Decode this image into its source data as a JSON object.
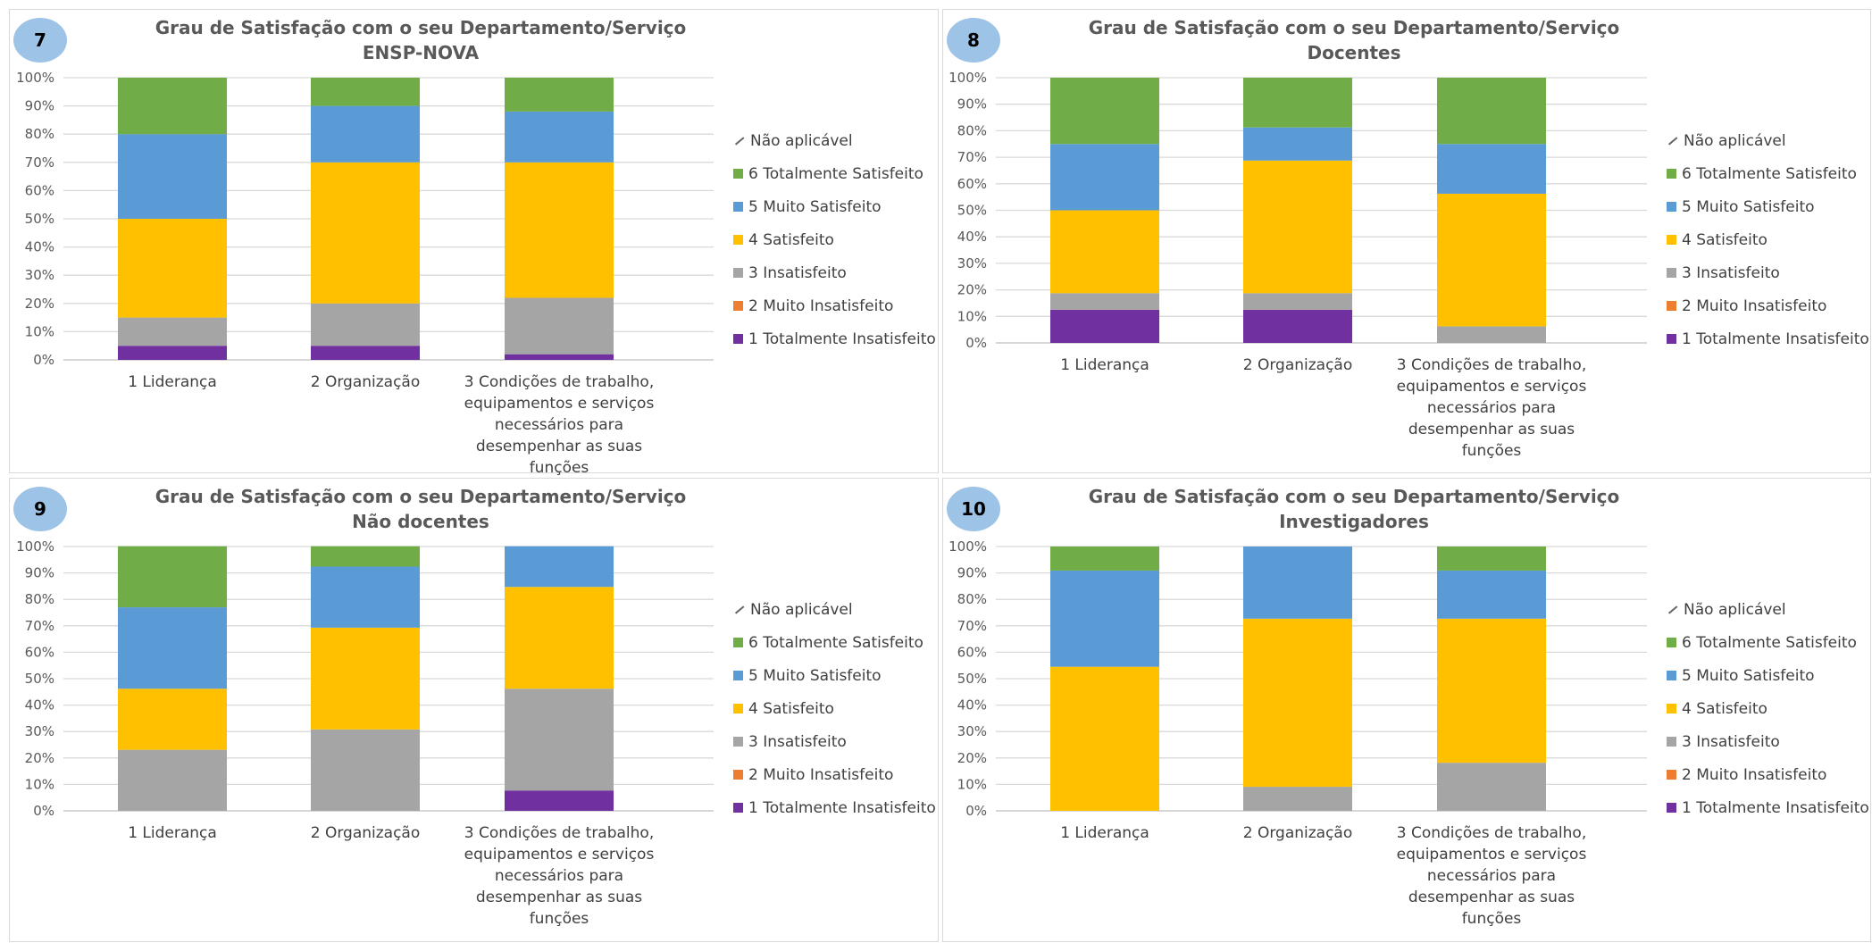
{
  "legend": [
    "Não aplicável",
    "6 Totalmente Satisfeito",
    "5 Muito Satisfeito",
    "4 Satisfeito",
    "3 Insatisfeito",
    "2 Muito Insatisfeito",
    "1 Totalmente Insatisfeito"
  ],
  "colors": {
    "1 Totalmente Insatisfeito": "#7030a0",
    "2 Muito Insatisfeito": "#ed7d31",
    "3 Insatisfeito": "#a5a5a5",
    "4 Satisfeito": "#ffc000",
    "5 Muito Satisfeito": "#5b9bd5",
    "6 Totalmente Satisfeito": "#70ad47",
    "Não aplicável": "#ffffff"
  },
  "chart_data": [
    {
      "type": "bar",
      "badge": "7",
      "title": "Grau de Satisfação com o seu Departamento/Serviço",
      "subtitle": "ENSP-NOVA",
      "categories": [
        "1 Liderança",
        "2 Organização",
        "3 Condições de trabalho, equipamentos e serviços necessários para desempenhar as suas funções"
      ],
      "yticks": [
        "0%",
        "10%",
        "20%",
        "30%",
        "40%",
        "50%",
        "60%",
        "70%",
        "80%",
        "90%",
        "100%"
      ],
      "ylim": [
        0,
        100
      ],
      "series": [
        {
          "name": "1 Totalmente Insatisfeito",
          "values": [
            5,
            5,
            2
          ]
        },
        {
          "name": "2 Muito Insatisfeito",
          "values": [
            0,
            0,
            0
          ]
        },
        {
          "name": "3 Insatisfeito",
          "values": [
            10,
            15,
            20
          ]
        },
        {
          "name": "4 Satisfeito",
          "values": [
            35,
            50,
            48
          ]
        },
        {
          "name": "5 Muito Satisfeito",
          "values": [
            30,
            20,
            18
          ]
        },
        {
          "name": "6 Totalmente Satisfeito",
          "values": [
            20,
            10,
            12
          ]
        },
        {
          "name": "Não aplicável",
          "values": [
            0,
            0,
            0
          ]
        }
      ]
    },
    {
      "type": "bar",
      "badge": "8",
      "title": "Grau de Satisfação com o seu Departamento/Serviço",
      "subtitle": "Docentes",
      "categories": [
        "1 Liderança",
        "2 Organização",
        "3 Condições de trabalho, equipamentos e serviços necessários para desempenhar as suas funções"
      ],
      "yticks": [
        "0%",
        "10%",
        "20%",
        "30%",
        "40%",
        "50%",
        "60%",
        "70%",
        "80%",
        "90%",
        "100%"
      ],
      "ylim": [
        0,
        100
      ],
      "series": [
        {
          "name": "1 Totalmente Insatisfeito",
          "values": [
            12.5,
            12.5,
            0
          ]
        },
        {
          "name": "2 Muito Insatisfeito",
          "values": [
            0,
            0,
            0
          ]
        },
        {
          "name": "3 Insatisfeito",
          "values": [
            6.25,
            6.25,
            6.25
          ]
        },
        {
          "name": "4 Satisfeito",
          "values": [
            31.25,
            50,
            50
          ]
        },
        {
          "name": "5 Muito Satisfeito",
          "values": [
            25,
            12.5,
            18.75
          ]
        },
        {
          "name": "6 Totalmente Satisfeito",
          "values": [
            25,
            18.75,
            25
          ]
        },
        {
          "name": "Não aplicável",
          "values": [
            0,
            0,
            0
          ]
        }
      ]
    },
    {
      "type": "bar",
      "badge": "9",
      "title": "Grau de Satisfação com o seu Departamento/Serviço",
      "subtitle": "Não docentes",
      "categories": [
        "1 Liderança",
        "2 Organização",
        "3 Condições de trabalho, equipamentos e serviços necessários para desempenhar as suas funções"
      ],
      "yticks": [
        "0%",
        "10%",
        "20%",
        "30%",
        "40%",
        "50%",
        "60%",
        "70%",
        "80%",
        "90%",
        "100%"
      ],
      "ylim": [
        0,
        100
      ],
      "series": [
        {
          "name": "1 Totalmente Insatisfeito",
          "values": [
            0,
            0,
            7.7
          ]
        },
        {
          "name": "2 Muito Insatisfeito",
          "values": [
            0,
            0,
            0
          ]
        },
        {
          "name": "3 Insatisfeito",
          "values": [
            23.1,
            30.8,
            38.5
          ]
        },
        {
          "name": "4 Satisfeito",
          "values": [
            23.1,
            38.5,
            38.5
          ]
        },
        {
          "name": "5 Muito Satisfeito",
          "values": [
            30.8,
            23.1,
            15.4
          ]
        },
        {
          "name": "6 Totalmente Satisfeito",
          "values": [
            23.1,
            7.7,
            0
          ]
        },
        {
          "name": "Não aplicável",
          "values": [
            0,
            0,
            0
          ]
        }
      ]
    },
    {
      "type": "bar",
      "badge": "10",
      "title": "Grau de Satisfação com o seu Departamento/Serviço",
      "subtitle": "Investigadores",
      "categories": [
        "1 Liderança",
        "2 Organização",
        "3 Condições de trabalho, equipamentos e serviços necessários para desempenhar as suas funções"
      ],
      "yticks": [
        "0%",
        "10%",
        "20%",
        "30%",
        "40%",
        "50%",
        "60%",
        "70%",
        "80%",
        "90%",
        "100%"
      ],
      "ylim": [
        0,
        100
      ],
      "series": [
        {
          "name": "1 Totalmente Insatisfeito",
          "values": [
            0,
            0,
            0
          ]
        },
        {
          "name": "2 Muito Insatisfeito",
          "values": [
            0,
            0,
            0
          ]
        },
        {
          "name": "3 Insatisfeito",
          "values": [
            0,
            9.1,
            18.2
          ]
        },
        {
          "name": "4 Satisfeito",
          "values": [
            54.5,
            63.6,
            54.5
          ]
        },
        {
          "name": "5 Muito Satisfeito",
          "values": [
            36.4,
            27.3,
            18.2
          ]
        },
        {
          "name": "6 Totalmente Satisfeito",
          "values": [
            9.1,
            0,
            9.1
          ]
        },
        {
          "name": "Não aplicável",
          "values": [
            0,
            0,
            0
          ]
        }
      ]
    }
  ]
}
